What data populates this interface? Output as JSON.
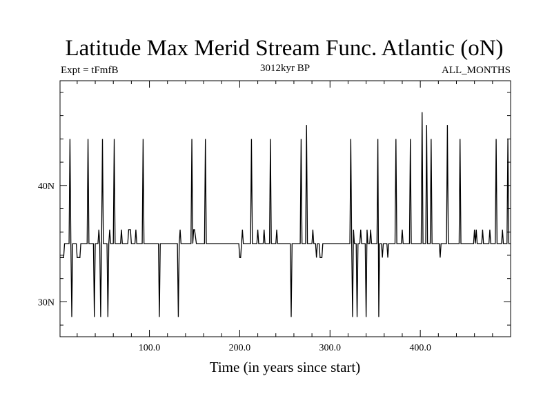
{
  "chart_data": {
    "type": "line",
    "title": "Latitude Max Merid Stream Func. Atlantic (oN)",
    "subtitle_left": "Expt = tFmfB",
    "subtitle_center": "3012kyr BP",
    "subtitle_right": "ALL_MONTHS",
    "xlabel": "Time (in years since start)",
    "ylabel": "",
    "xlim": [
      1,
      500
    ],
    "ylim": [
      27,
      49
    ],
    "x_ticks": [
      100,
      200,
      300,
      400
    ],
    "x_tick_labels": [
      "100.0",
      "200.0",
      "300.0",
      "400.0"
    ],
    "y_ticks": [
      30,
      40
    ],
    "y_tick_labels": [
      "30N",
      "40N"
    ],
    "baseline": 35,
    "grid": false,
    "colors": {
      "line": "#000000",
      "axes": "#000000",
      "background": "#ffffff"
    },
    "series": [
      {
        "values": [
          [
            1,
            33.8
          ],
          [
            5,
            33.8
          ],
          [
            6,
            35
          ],
          [
            11,
            35
          ],
          [
            12,
            44
          ],
          [
            13,
            35
          ],
          [
            14,
            28.7
          ],
          [
            15,
            35
          ],
          [
            19,
            35
          ],
          [
            20,
            33.8
          ],
          [
            23,
            33.8
          ],
          [
            24,
            35
          ],
          [
            31,
            35
          ],
          [
            32,
            44
          ],
          [
            33,
            35
          ],
          [
            38,
            35
          ],
          [
            39,
            28.7
          ],
          [
            40,
            35
          ],
          [
            43,
            35
          ],
          [
            44,
            36.2
          ],
          [
            45,
            35
          ],
          [
            46,
            28.7
          ],
          [
            47,
            35
          ],
          [
            48,
            44
          ],
          [
            49,
            35
          ],
          [
            53,
            35
          ],
          [
            54,
            28.7
          ],
          [
            55,
            35
          ],
          [
            56,
            36.2
          ],
          [
            57,
            35
          ],
          [
            60,
            35
          ],
          [
            61,
            44
          ],
          [
            62,
            35
          ],
          [
            68,
            35
          ],
          [
            69,
            36.2
          ],
          [
            70,
            35
          ],
          [
            76,
            35
          ],
          [
            77,
            36.2
          ],
          [
            79,
            36.2
          ],
          [
            80,
            35
          ],
          [
            84,
            35
          ],
          [
            85,
            36.2
          ],
          [
            86,
            35
          ],
          [
            92,
            35
          ],
          [
            93,
            44
          ],
          [
            94,
            35
          ],
          [
            110,
            35
          ],
          [
            111,
            28.7
          ],
          [
            112,
            35
          ],
          [
            131,
            35
          ],
          [
            132,
            28.7
          ],
          [
            133,
            35
          ],
          [
            134,
            36.2
          ],
          [
            135,
            35
          ],
          [
            146,
            35
          ],
          [
            147,
            44
          ],
          [
            148,
            35
          ],
          [
            149,
            36.2
          ],
          [
            150,
            36.2
          ],
          [
            152,
            35
          ],
          [
            161,
            35
          ],
          [
            162,
            44
          ],
          [
            163,
            35
          ],
          [
            199,
            35
          ],
          [
            200,
            33.8
          ],
          [
            201,
            33.8
          ],
          [
            202,
            35
          ],
          [
            203,
            36.2
          ],
          [
            204,
            35
          ],
          [
            212,
            35
          ],
          [
            213,
            44
          ],
          [
            214,
            35
          ],
          [
            219,
            35
          ],
          [
            220,
            36.2
          ],
          [
            221,
            35
          ],
          [
            226,
            35
          ],
          [
            227,
            36.2
          ],
          [
            228,
            35
          ],
          [
            233,
            35
          ],
          [
            234,
            44
          ],
          [
            235,
            35
          ],
          [
            240,
            35
          ],
          [
            241,
            36.2
          ],
          [
            242,
            35
          ],
          [
            256,
            35
          ],
          [
            257,
            28.7
          ],
          [
            258,
            35
          ],
          [
            267,
            35
          ],
          [
            268,
            44
          ],
          [
            269,
            35
          ],
          [
            273,
            35
          ],
          [
            274,
            45.2
          ],
          [
            275,
            35
          ],
          [
            280,
            35
          ],
          [
            281,
            36.2
          ],
          [
            282,
            35
          ],
          [
            284,
            35
          ],
          [
            285,
            33.8
          ],
          [
            286,
            35
          ],
          [
            288,
            35
          ],
          [
            289,
            33.8
          ],
          [
            291,
            33.8
          ],
          [
            292,
            35
          ],
          [
            322,
            35
          ],
          [
            323,
            44
          ],
          [
            324,
            35
          ],
          [
            325,
            28.7
          ],
          [
            326,
            36.2
          ],
          [
            327,
            35
          ],
          [
            329,
            35
          ],
          [
            330,
            28.7
          ],
          [
            331,
            35
          ],
          [
            333,
            35
          ],
          [
            334,
            36.2
          ],
          [
            335,
            35
          ],
          [
            339,
            35
          ],
          [
            340,
            28.7
          ],
          [
            341,
            36.2
          ],
          [
            342,
            35
          ],
          [
            344,
            35
          ],
          [
            345,
            36.2
          ],
          [
            346,
            35
          ],
          [
            352,
            35
          ],
          [
            353,
            44
          ],
          [
            354,
            28.7
          ],
          [
            355,
            35
          ],
          [
            357,
            35
          ],
          [
            358,
            33.8
          ],
          [
            359,
            35
          ],
          [
            363,
            35
          ],
          [
            364,
            33.8
          ],
          [
            365,
            35
          ],
          [
            372,
            35
          ],
          [
            373,
            44
          ],
          [
            374,
            35
          ],
          [
            379,
            35
          ],
          [
            380,
            36.2
          ],
          [
            381,
            35
          ],
          [
            388,
            35
          ],
          [
            389,
            44
          ],
          [
            390,
            35
          ],
          [
            401,
            35
          ],
          [
            402,
            46.3
          ],
          [
            403,
            35
          ],
          [
            406,
            35
          ],
          [
            407,
            45.2
          ],
          [
            408,
            35
          ],
          [
            411,
            35
          ],
          [
            412,
            44
          ],
          [
            413,
            35
          ],
          [
            421,
            35
          ],
          [
            422,
            33.8
          ],
          [
            423,
            35
          ],
          [
            429,
            35
          ],
          [
            430,
            45.2
          ],
          [
            431,
            35
          ],
          [
            443,
            35
          ],
          [
            444,
            44
          ],
          [
            445,
            35
          ],
          [
            459,
            35
          ],
          [
            460,
            36.2
          ],
          [
            461,
            35
          ],
          [
            462,
            36.2
          ],
          [
            463,
            35
          ],
          [
            468,
            35
          ],
          [
            469,
            36.2
          ],
          [
            470,
            35
          ],
          [
            476,
            35
          ],
          [
            477,
            36.2
          ],
          [
            478,
            35
          ],
          [
            483,
            35
          ],
          [
            484,
            44
          ],
          [
            485,
            35
          ],
          [
            490,
            35
          ],
          [
            491,
            36.2
          ],
          [
            492,
            35
          ],
          [
            496,
            35
          ],
          [
            497,
            44
          ],
          [
            498,
            35
          ],
          [
            500,
            35
          ]
        ]
      }
    ]
  }
}
